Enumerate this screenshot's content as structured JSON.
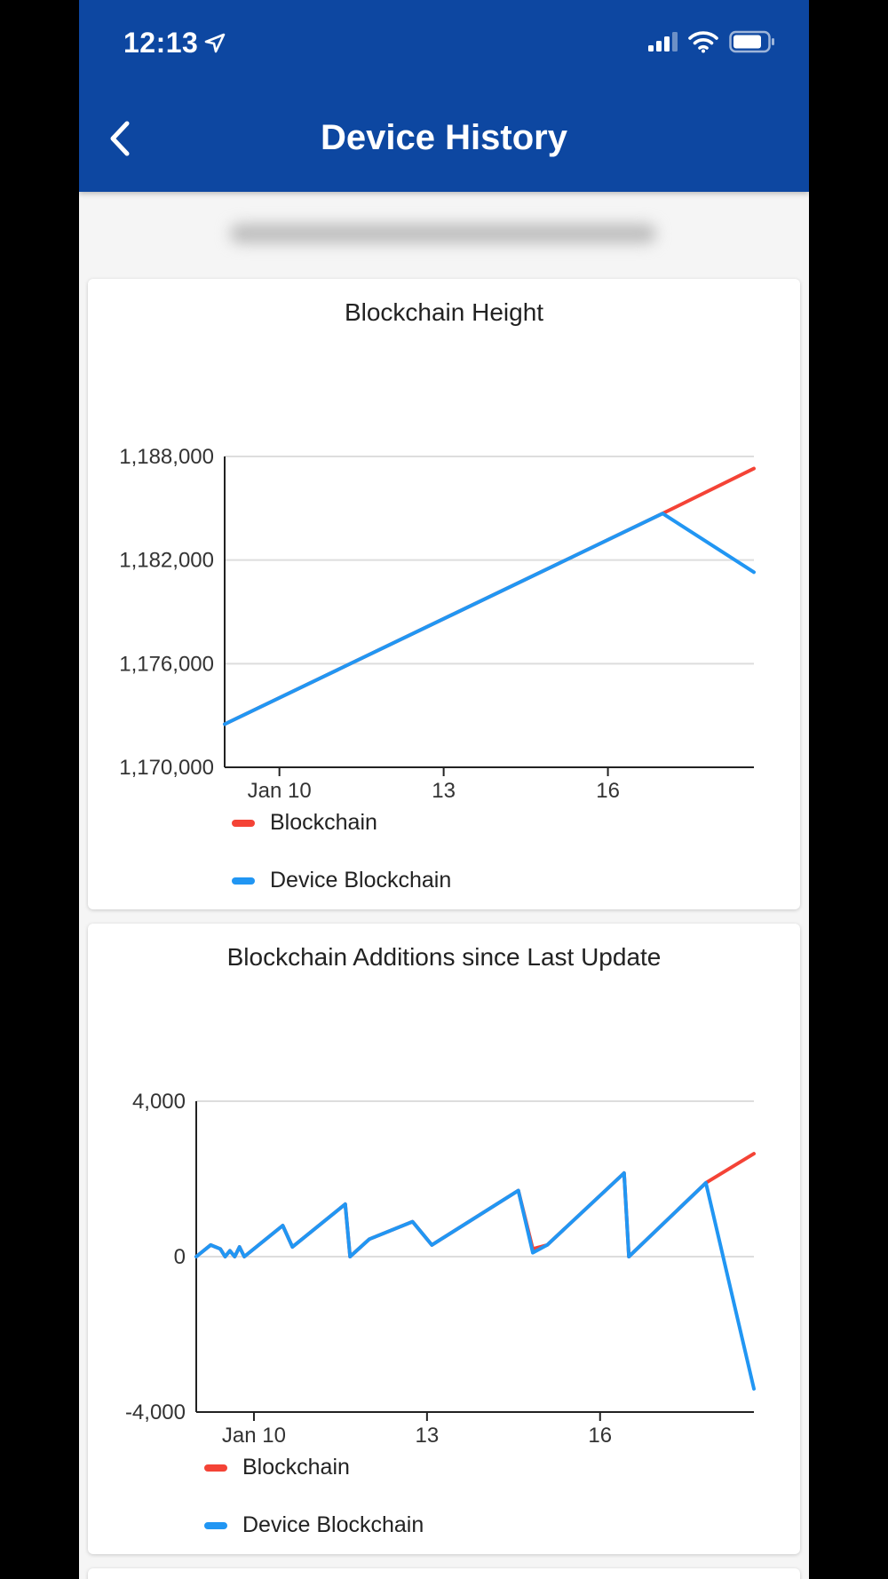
{
  "status_bar": {
    "time": "12:13",
    "icons": [
      "location-arrow-icon",
      "signal-icon",
      "wifi-icon",
      "battery-icon"
    ]
  },
  "header": {
    "title": "Device History",
    "back_icon": "chevron-left-icon",
    "background": "#0d47a1"
  },
  "colors": {
    "blockchain": "#f44336",
    "device": "#2196f3"
  },
  "chart_data": [
    {
      "type": "line",
      "title": "Blockchain Height",
      "ylim": [
        1170000,
        1188000
      ],
      "yticks": [
        1170000,
        1176000,
        1182000,
        1188000
      ],
      "ytick_labels": [
        "1,170,000",
        "1,176,000",
        "1,182,000",
        "1,188,000"
      ],
      "xlim": [
        "Jan 9 00:00",
        "Jan 18 16:00"
      ],
      "xticks": [
        "Jan 10",
        "13",
        "16"
      ],
      "grid": true,
      "legend_position": "bottom-left",
      "series": [
        {
          "name": "Blockchain",
          "x": [
            "Jan 9 00:00",
            "Jan 17 00:00",
            "Jan 18 16:00"
          ],
          "y": [
            1172500,
            1184700,
            1187300
          ]
        },
        {
          "name": "Device Blockchain",
          "x": [
            "Jan 9 00:00",
            "Jan 17 00:00",
            "Jan 18 16:00"
          ],
          "y": [
            1172500,
            1184700,
            1181300
          ]
        }
      ]
    },
    {
      "type": "line",
      "title": "Blockchain Additions since Last Update",
      "ylim": [
        -4000,
        4000
      ],
      "yticks": [
        -4000,
        0,
        4000
      ],
      "ytick_labels": [
        "-4,000",
        "0",
        "4,000"
      ],
      "xlim": [
        "Jan 9 00:00",
        "Jan 18 16:00"
      ],
      "xticks": [
        "Jan 10",
        "13",
        "16"
      ],
      "grid": true,
      "legend_position": "bottom-left",
      "series": [
        {
          "name": "Blockchain",
          "x": [
            "Jan 9 00:00",
            "Jan 9 06:00",
            "Jan 9 10:00",
            "Jan 9 12:00",
            "Jan 9 14:00",
            "Jan 9 16:00",
            "Jan 9 18:00",
            "Jan 9 20:00",
            "Jan 10 12:00",
            "Jan 10 16:00",
            "Jan 11 14:00",
            "Jan 11 16:00",
            "Jan 12 00:00",
            "Jan 12 18:00",
            "Jan 13 02:00",
            "Jan 14 14:00",
            "Jan 14 20:00",
            "Jan 15 02:00",
            "Jan 16 10:00",
            "Jan 16 12:00",
            "Jan 17 20:00",
            "Jan 18 16:00"
          ],
          "y": [
            0,
            300,
            200,
            0,
            150,
            0,
            250,
            0,
            800,
            250,
            1350,
            0,
            450,
            900,
            300,
            1700,
            200,
            300,
            2150,
            0,
            1900,
            2650
          ]
        },
        {
          "name": "Device Blockchain",
          "x": [
            "Jan 9 00:00",
            "Jan 9 06:00",
            "Jan 9 10:00",
            "Jan 9 12:00",
            "Jan 9 14:00",
            "Jan 9 16:00",
            "Jan 9 18:00",
            "Jan 9 20:00",
            "Jan 10 12:00",
            "Jan 10 16:00",
            "Jan 11 14:00",
            "Jan 11 16:00",
            "Jan 12 00:00",
            "Jan 12 18:00",
            "Jan 13 02:00",
            "Jan 14 14:00",
            "Jan 14 20:00",
            "Jan 15 02:00",
            "Jan 16 10:00",
            "Jan 16 12:00",
            "Jan 17 20:00",
            "Jan 18 16:00"
          ],
          "y": [
            0,
            300,
            200,
            0,
            150,
            0,
            250,
            0,
            800,
            250,
            1350,
            0,
            450,
            900,
            300,
            1700,
            100,
            300,
            2150,
            0,
            1900,
            -3400
          ]
        }
      ]
    }
  ]
}
